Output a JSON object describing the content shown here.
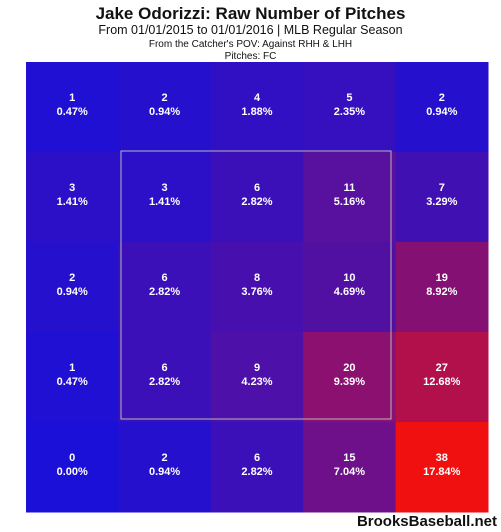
{
  "header": {
    "title": "Jake Odorizzi: Raw Number of Pitches",
    "subtitle": "From 01/01/2015 to 01/01/2016 | MLB Regular Season",
    "pov": "From the Catcher's POV:  Against RHH & LHH",
    "pitches": "Pitches:  FC"
  },
  "footer": {
    "brand": "BrooksBaseball.net"
  },
  "chart_data": {
    "type": "heatmap",
    "rows": 5,
    "cols": 5,
    "cells": [
      [
        {
          "count": "1",
          "pct": "0.47%"
        },
        {
          "count": "2",
          "pct": "0.94%"
        },
        {
          "count": "4",
          "pct": "1.88%"
        },
        {
          "count": "5",
          "pct": "2.35%"
        },
        {
          "count": "2",
          "pct": "0.94%"
        }
      ],
      [
        {
          "count": "3",
          "pct": "1.41%"
        },
        {
          "count": "3",
          "pct": "1.41%"
        },
        {
          "count": "6",
          "pct": "2.82%"
        },
        {
          "count": "11",
          "pct": "5.16%"
        },
        {
          "count": "7",
          "pct": "3.29%"
        }
      ],
      [
        {
          "count": "2",
          "pct": "0.94%"
        },
        {
          "count": "6",
          "pct": "2.82%"
        },
        {
          "count": "8",
          "pct": "3.76%"
        },
        {
          "count": "10",
          "pct": "4.69%"
        },
        {
          "count": "19",
          "pct": "8.92%"
        }
      ],
      [
        {
          "count": "1",
          "pct": "0.47%"
        },
        {
          "count": "6",
          "pct": "2.82%"
        },
        {
          "count": "9",
          "pct": "4.23%"
        },
        {
          "count": "20",
          "pct": "9.39%"
        },
        {
          "count": "27",
          "pct": "12.68%"
        }
      ],
      [
        {
          "count": "0",
          "pct": "0.00%"
        },
        {
          "count": "2",
          "pct": "0.94%"
        },
        {
          "count": "6",
          "pct": "2.82%"
        },
        {
          "count": "15",
          "pct": "7.04%"
        },
        {
          "count": "38",
          "pct": "17.84%"
        }
      ]
    ],
    "color_low": "#1a10d8",
    "color_high": "#f01010",
    "strike_zone": "inner 3x3 cells"
  }
}
